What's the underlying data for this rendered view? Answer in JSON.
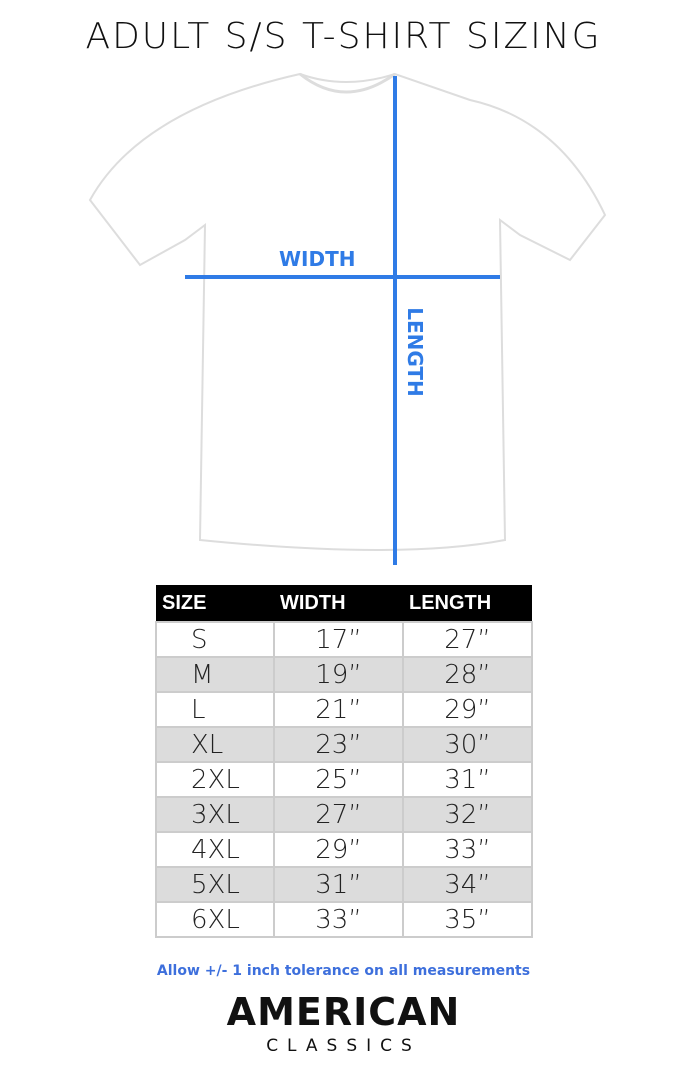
{
  "title": "ADULT S/S T-SHIRT SIZING",
  "diagram": {
    "width_label": "WIDTH",
    "length_label": "LENGTH",
    "line_color": "#2f7be6"
  },
  "table": {
    "headers": [
      "SIZE",
      "WIDTH",
      "LENGTH"
    ],
    "rows": [
      [
        "S",
        "17”",
        "27”"
      ],
      [
        "M",
        "19”",
        "28”"
      ],
      [
        "L",
        "21”",
        "29”"
      ],
      [
        "XL",
        "23”",
        "30”"
      ],
      [
        "2XL",
        "25”",
        "31”"
      ],
      [
        "3XL",
        "27”",
        "32”"
      ],
      [
        "4XL",
        "29”",
        "33”"
      ],
      [
        "5XL",
        "31”",
        "34”"
      ],
      [
        "6XL",
        "33”",
        "35”"
      ]
    ]
  },
  "note": "Allow +/- 1 inch tolerance on all measurements",
  "logo": {
    "line1": "AMERICAN",
    "line2": "CLASSICS"
  }
}
